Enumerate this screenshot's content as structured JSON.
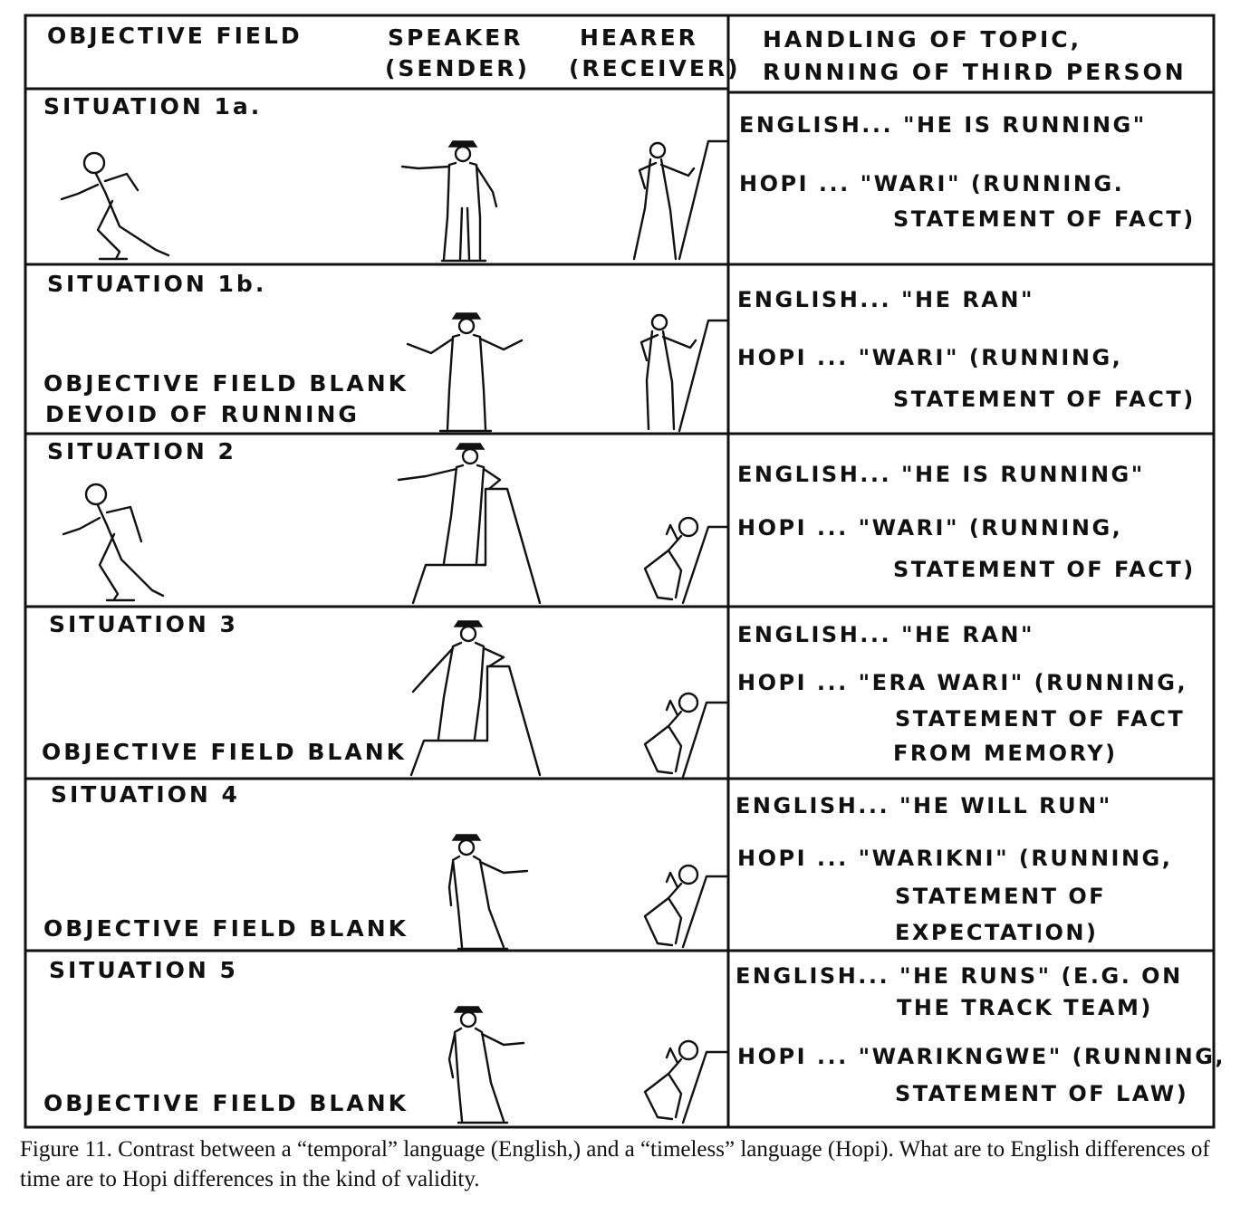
{
  "header": {
    "objective_field": "OBJECTIVE FIELD",
    "speaker_1": "SPEAKER",
    "speaker_2": "(SENDER)",
    "hearer_1": "HEARER",
    "hearer_2": "(RECEIVER)",
    "handling_1": "HANDLING OF TOPIC,",
    "handling_2": "RUNNING OF THIRD PERSON"
  },
  "rows": [
    {
      "situation": "SITUATION 1a.",
      "field_text": [],
      "english": [
        "ENGLISH... \"HE IS RUNNING\""
      ],
      "hopi": [
        "HOPI ... \"WARI\" (RUNNING.",
        "STATEMENT OF FACT)"
      ]
    },
    {
      "situation": "SITUATION 1b.",
      "field_text": [
        "OBJECTIVE FIELD BLANK",
        "DEVOID OF RUNNING"
      ],
      "english": [
        "ENGLISH... \"HE RAN\""
      ],
      "hopi": [
        "HOPI ... \"WARI\" (RUNNING,",
        "STATEMENT OF FACT)"
      ]
    },
    {
      "situation": "SITUATION 2",
      "field_text": [],
      "english": [
        "ENGLISH... \"HE IS RUNNING\""
      ],
      "hopi": [
        "HOPI ... \"WARI\" (RUNNING,",
        "STATEMENT OF FACT)"
      ]
    },
    {
      "situation": "SITUATION 3",
      "field_text": [
        "OBJECTIVE FIELD BLANK"
      ],
      "english": [
        "ENGLISH... \"HE RAN\""
      ],
      "hopi": [
        "HOPI ... \"ERA WARI\" (RUNNING,",
        "STATEMENT OF FACT",
        "FROM MEMORY)"
      ]
    },
    {
      "situation": "SITUATION 4",
      "field_text": [
        "OBJECTIVE FIELD BLANK"
      ],
      "english": [
        "ENGLISH... \"HE WILL RUN\""
      ],
      "hopi": [
        "HOPI ... \"WARIKNI\" (RUNNING,",
        "STATEMENT OF",
        "EXPECTATION)"
      ]
    },
    {
      "situation": "SITUATION 5",
      "field_text": [
        "OBJECTIVE FIELD BLANK"
      ],
      "english": [
        "ENGLISH... \"HE RUNS\" (E.G. ON",
        "THE TRACK TEAM)"
      ],
      "hopi": [
        "HOPI ... \"WARIKNGWE\" (RUNNING,",
        "STATEMENT OF LAW)"
      ]
    }
  ],
  "caption": "Figure 11. Contrast between a “temporal” language (English,) and a “timeless” language (Hopi). What are to English differences of time are to Hopi differences in the kind of validity."
}
